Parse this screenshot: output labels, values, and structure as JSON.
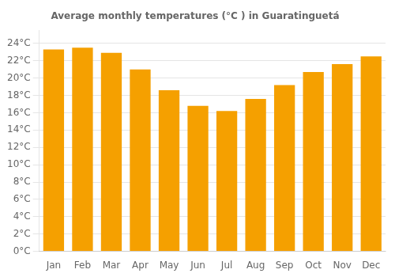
{
  "chart_data": {
    "type": "bar",
    "title": "Average monthly temperatures (°C ) in Guaratinguetá",
    "categories": [
      "Jan",
      "Feb",
      "Mar",
      "Apr",
      "May",
      "Jun",
      "Jul",
      "Aug",
      "Sep",
      "Oct",
      "Nov",
      "Dec"
    ],
    "values": [
      23.3,
      23.5,
      22.9,
      21.0,
      18.6,
      16.8,
      16.2,
      17.6,
      19.2,
      20.7,
      21.6,
      22.5
    ],
    "color": "#F5A000",
    "ylim": [
      0,
      25.5
    ],
    "yticks": [
      {
        "value": 0,
        "label": "0°C"
      },
      {
        "value": 2,
        "label": "2°C"
      },
      {
        "value": 4,
        "label": "4°C"
      },
      {
        "value": 6,
        "label": "6°C"
      },
      {
        "value": 8,
        "label": "8°C"
      },
      {
        "value": 10,
        "label": "10°C"
      },
      {
        "value": 12,
        "label": "12°C"
      },
      {
        "value": 14,
        "label": "14°C"
      },
      {
        "value": 16,
        "label": "16°C"
      },
      {
        "value": 18,
        "label": "18°C"
      },
      {
        "value": 20,
        "label": "20°C"
      },
      {
        "value": 22,
        "label": "22°C"
      },
      {
        "value": 24,
        "label": "24°C"
      }
    ],
    "grid": true
  }
}
